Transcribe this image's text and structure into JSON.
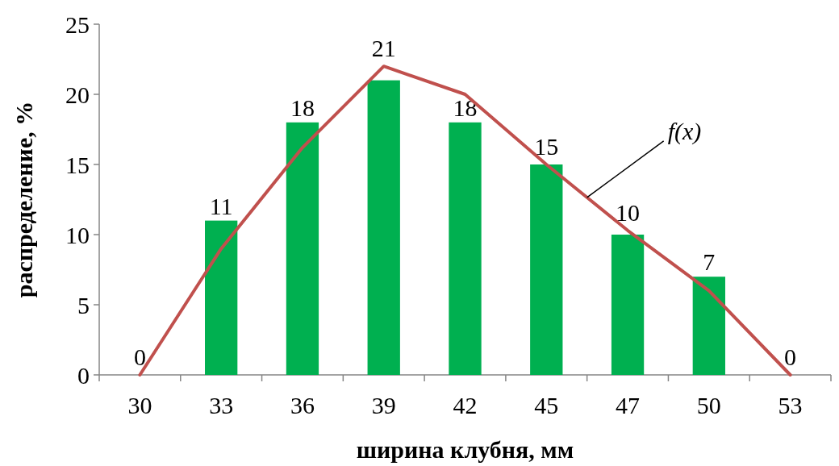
{
  "chart_data": {
    "type": "bar",
    "xlabel": "ширина клубня, мм",
    "ylabel": "распределение, %",
    "categories": [
      "30",
      "33",
      "36",
      "39",
      "42",
      "45",
      "47",
      "50",
      "53"
    ],
    "ylim": [
      0,
      25
    ],
    "yticks": [
      0,
      5,
      10,
      15,
      20,
      25
    ],
    "grid": false,
    "series": [
      {
        "color": "#00b050",
        "data_labels": true,
        "values": [
          0,
          11,
          18,
          21,
          18,
          15,
          10,
          7,
          0
        ]
      },
      {
        "type": "line",
        "name": "f(x)",
        "color": "#c0504d",
        "values": [
          0,
          9,
          16.2,
          22,
          20,
          15,
          10.3,
          6,
          0
        ]
      }
    ]
  }
}
